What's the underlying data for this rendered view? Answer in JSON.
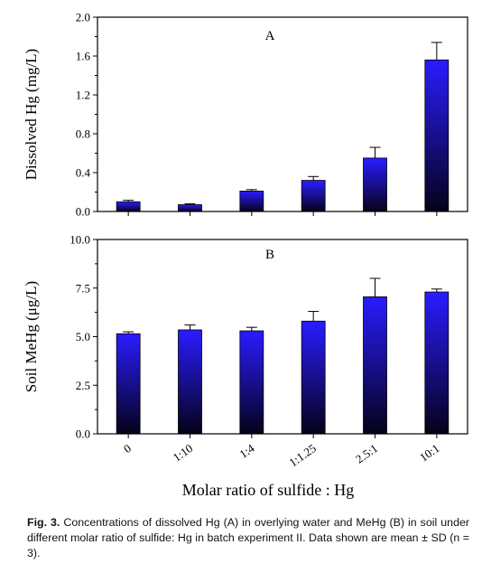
{
  "chart_data": [
    {
      "type": "bar",
      "panel_label": "A",
      "categories": [
        "0",
        "1:10",
        "1:4",
        "1:1.25",
        "2.5:1",
        "10:1"
      ],
      "values": [
        0.1,
        0.07,
        0.21,
        0.32,
        0.55,
        1.56
      ],
      "error": [
        0.015,
        0.01,
        0.015,
        0.04,
        0.11,
        0.18
      ],
      "ylabel": "Dissolved Hg (mg/L)",
      "ylim": [
        0,
        2.0
      ],
      "yticks": [
        "0.0",
        "0.4",
        "0.8",
        "1.2",
        "1.6",
        "2.0"
      ],
      "grid": false
    },
    {
      "type": "bar",
      "panel_label": "B",
      "categories": [
        "0",
        "1:10",
        "1:4",
        "1:1.25",
        "2.5:1",
        "10:1"
      ],
      "values": [
        5.15,
        5.35,
        5.3,
        5.8,
        7.05,
        7.3
      ],
      "error": [
        0.1,
        0.25,
        0.18,
        0.5,
        0.95,
        0.15
      ],
      "ylabel": "Soil MeHg (μg/L)",
      "xlabel": "Molar ratio of sulfide : Hg",
      "ylim": [
        0,
        10.0
      ],
      "yticks": [
        "0.0",
        "2.5",
        "5.0",
        "7.5",
        "10.0"
      ],
      "grid": false
    }
  ],
  "colors": {
    "bar_top": "#2a1cff",
    "bar_bottom": "#050218"
  },
  "caption": {
    "label": "Fig. 3.",
    "text": " Concentrations of dissolved Hg (A) in overlying water and MeHg (B) in soil under different molar ratio of sulfide: Hg in batch experiment II. Data shown are mean ± SD (n = 3)."
  }
}
